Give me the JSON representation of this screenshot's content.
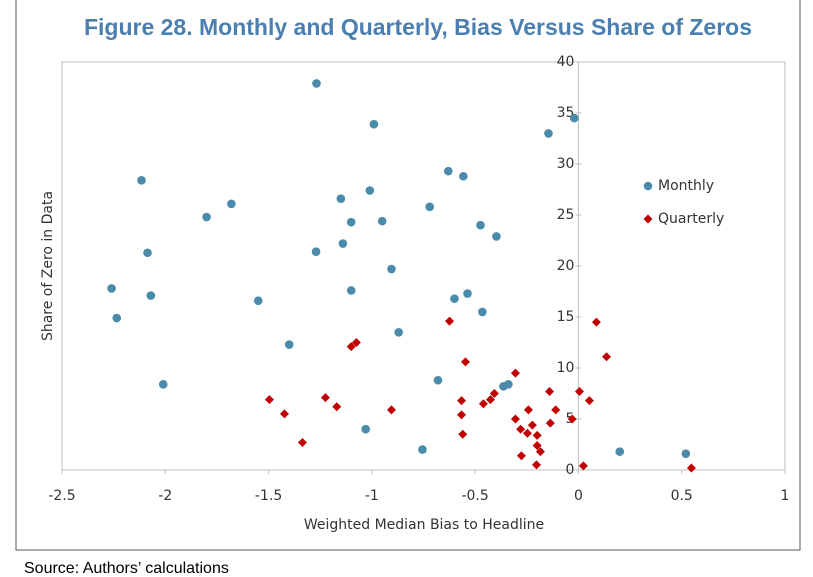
{
  "chart_data": {
    "type": "scatter",
    "title": "Figure 28. Monthly and Quarterly, Bias Versus Share of Zeros",
    "x_label": "Weighted Median Bias to Headline",
    "y_label": "Share of Zero in Data",
    "source": "Source: Authors’ calculations",
    "xlim": [
      -2.5,
      1
    ],
    "xticks": [
      -2.5,
      -2,
      -1.5,
      -1,
      -0.5,
      0,
      0.5,
      1
    ],
    "ylim": [
      0,
      40
    ],
    "yticks": [
      0,
      5,
      10,
      15,
      20,
      25,
      30,
      35,
      40
    ],
    "grid": false,
    "legend": "right",
    "series": [
      {
        "name": "Monthly",
        "color": "#4a8aaa",
        "marker": "circle",
        "x": [
          -1.268,
          -0.99,
          -0.145,
          -0.02,
          -2.115,
          -1.68,
          -1.8,
          -1.15,
          -1.01,
          -1.1,
          -0.95,
          -0.72,
          -0.63,
          -0.557,
          -0.474,
          -0.397,
          -1.14,
          -1.27,
          -2.086,
          -0.905,
          -2.26,
          -2.07,
          -1.1,
          -1.55,
          -0.537,
          -0.6,
          -0.465,
          -2.235,
          -0.87,
          -1.4,
          -0.68,
          -0.363,
          -0.339,
          -2.01,
          -1.03,
          -0.755,
          0.2,
          0.52
        ],
        "values": [
          37.9,
          33.9,
          33.0,
          34.5,
          28.4,
          26.1,
          24.8,
          26.6,
          27.4,
          24.3,
          24.4,
          25.8,
          29.3,
          28.8,
          24.0,
          22.9,
          22.2,
          21.4,
          21.3,
          19.7,
          17.8,
          17.1,
          17.6,
          16.6,
          17.3,
          16.8,
          15.5,
          14.9,
          13.5,
          12.3,
          8.8,
          8.2,
          8.4,
          8.4,
          4.0,
          2.0,
          1.8,
          1.6
        ]
      },
      {
        "name": "Quarterly",
        "color": "#c00000",
        "marker": "diamond",
        "x": [
          -0.624,
          0.087,
          0.136,
          -1.075,
          -1.1,
          -0.547,
          -0.305,
          -0.14,
          0.005,
          0.053,
          -1.496,
          -1.225,
          -0.566,
          -0.407,
          -0.426,
          -0.46,
          -1.17,
          -0.905,
          -1.423,
          -0.566,
          -0.242,
          -0.11,
          -0.305,
          -0.03,
          -0.136,
          -0.223,
          -0.28,
          -0.247,
          -0.2,
          -0.56,
          -1.336,
          -0.2,
          -0.184,
          -0.276,
          -0.203,
          0.024,
          0.547
        ],
        "values": [
          14.6,
          14.5,
          11.1,
          12.5,
          12.1,
          10.6,
          9.5,
          7.7,
          7.7,
          6.8,
          6.9,
          7.1,
          6.8,
          7.5,
          6.9,
          6.5,
          6.2,
          5.9,
          5.5,
          5.4,
          5.9,
          5.9,
          5.0,
          5.0,
          4.6,
          4.4,
          4.0,
          3.6,
          3.4,
          3.5,
          2.7,
          2.4,
          1.8,
          1.4,
          0.5,
          0.4,
          0.2
        ]
      }
    ]
  }
}
